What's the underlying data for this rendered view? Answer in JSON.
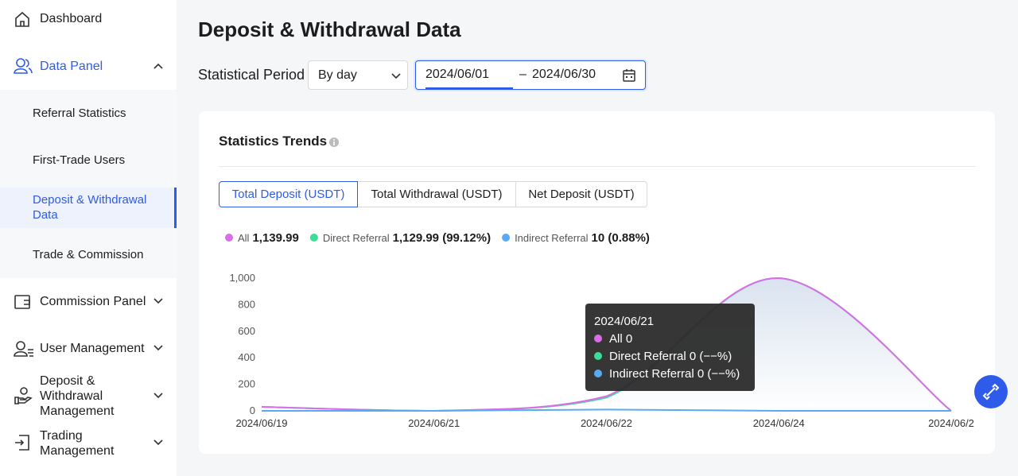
{
  "sidebar": {
    "items": [
      "Dashboard",
      "Data Panel",
      "Commission Panel",
      "User Management",
      "Deposit & Withdrawal Management",
      "Trading Management"
    ],
    "sub_items": [
      "Referral Statistics",
      "First-Trade Users",
      "Deposit & Withdrawal Data",
      "Trade & Commission"
    ]
  },
  "header": {
    "title": "Deposit & Withdrawal Data"
  },
  "filters": {
    "period_label": "Statistical Period",
    "period_value": "By day",
    "date_start": "2024/06/01",
    "date_end": "2024/06/30"
  },
  "card": {
    "title": "Statistics Trends",
    "tabs": [
      "Total Deposit (USDT)",
      "Total Withdrawal (USDT)",
      "Net Deposit (USDT)"
    ]
  },
  "chart_data": {
    "type": "line",
    "categories": [
      "2024/06/19",
      "2024/06/21",
      "2024/06/22",
      "2024/06/24",
      "2024/06/2"
    ],
    "series": [
      {
        "name": "All",
        "color": "#d96ee6",
        "total": "1,139.99",
        "values": [
          29.99,
          0,
          110,
          1000,
          0
        ]
      },
      {
        "name": "Direct Referral",
        "color": "#3ddc97",
        "total": "1,129.99 (99.12%)",
        "values": [
          29.99,
          0,
          100,
          1000,
          0
        ]
      },
      {
        "name": "Indirect Referral",
        "color": "#5aa9f5",
        "total": "10 (0.88%)",
        "values": [
          0,
          0,
          10,
          0,
          0
        ]
      }
    ],
    "ylim": [
      0,
      1000
    ],
    "yticks": [
      0,
      200,
      400,
      600,
      800,
      {
        "value": 1000,
        "label": "1,000"
      }
    ],
    "grid": false,
    "tooltip": {
      "title": "2024/06/21",
      "items": [
        "All 0",
        "Direct Referral 0 (−−%)",
        "Indirect Referral 0 (−−%)"
      ]
    }
  }
}
